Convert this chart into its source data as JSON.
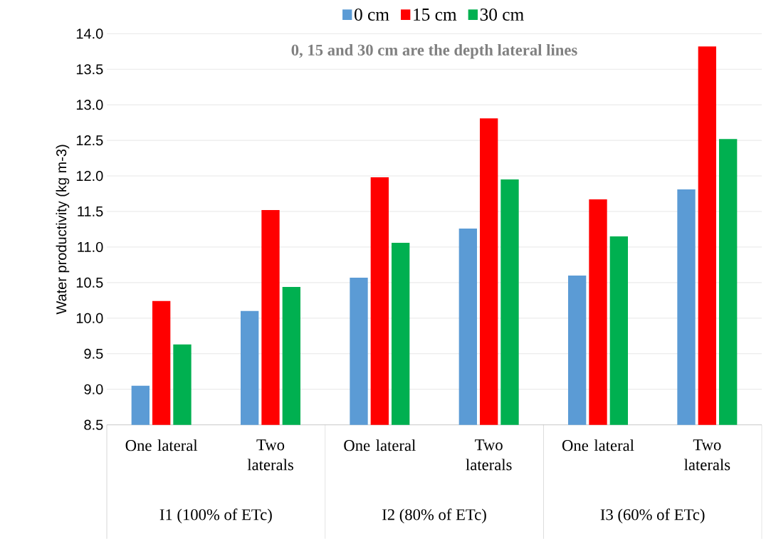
{
  "chart_data": {
    "type": "bar",
    "ylabel": "Water productivity (kg m-3)",
    "categories": [
      "One lateral",
      "Two laterals",
      "One lateral",
      "Two laterals",
      "One lateral",
      "Two laterals"
    ],
    "series": [
      {
        "name": "0 cm",
        "color": "#5b9bd5",
        "values": [
          9.05,
          10.1,
          10.57,
          11.26,
          10.6,
          11.81
        ]
      },
      {
        "name": "15 cm",
        "color": "#ff0000",
        "values": [
          10.24,
          11.52,
          11.98,
          12.81,
          11.67,
          13.82
        ]
      },
      {
        "name": "30 cm",
        "color": "#00b050",
        "values": [
          9.63,
          10.44,
          11.06,
          11.95,
          11.15,
          12.52
        ]
      }
    ],
    "annotations": [
      "0, 15 and 30 cm are the depth lateral lines",
      "I1 (100% of ETc)",
      "I2 (80% of ETc)",
      "I3 (60% of ETc)"
    ],
    "ylim": [
      8.5,
      14.0
    ],
    "yticks": [
      8.5,
      {
        "value": 9,
        "label": "9.0"
      },
      9.5,
      {
        "value": 10,
        "label": "10.0"
      },
      10.5,
      {
        "value": 11,
        "label": "11.0"
      },
      11.5,
      {
        "value": 12,
        "label": "12.0"
      },
      12.5,
      {
        "value": 13,
        "label": "13.0"
      },
      13.5,
      {
        "value": 14,
        "label": "14.0"
      }
    ],
    "grid": "y",
    "legend": "top"
  }
}
